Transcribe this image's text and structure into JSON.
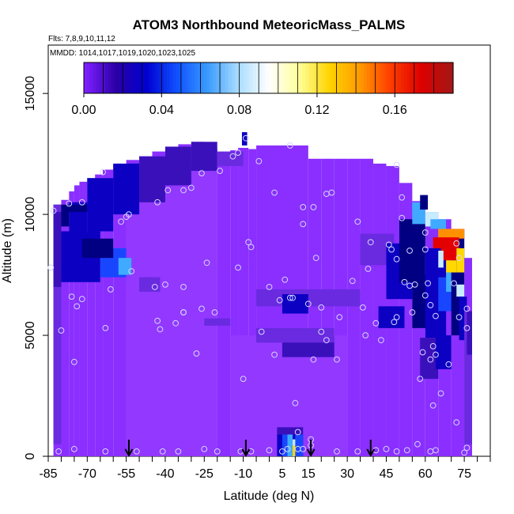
{
  "chart_data": {
    "type": "heatmap",
    "title": "ATOM3 Northbound MeteoricMass_PALMS",
    "flights_label": "Flts: 7,8,9,10,11,12",
    "dates_label": "MMDD: 1014,1017,1019,1020,1023,1025",
    "xlabel": "Latitude (deg N)",
    "ylabel": "Altitude (m)",
    "xlim": [
      -85,
      85
    ],
    "ylim": [
      0,
      17000
    ],
    "x_ticks": [
      "-85",
      "-70",
      "-55",
      "-40",
      "-25",
      "-10",
      "5",
      "15",
      "30",
      "45",
      "60",
      "75"
    ],
    "y_ticks": [
      "0",
      "5000",
      "10000",
      "15000"
    ],
    "colorbar": {
      "min": 0,
      "max": 0.19,
      "tick_labels": [
        "0.00",
        "0.04",
        "0.08",
        "0.12",
        "0.16"
      ],
      "colors": [
        "#7f1fff",
        "#2a00a6",
        "#0000d0",
        "#1050ff",
        "#3a9aff",
        "#a8dcff",
        "#ffffff",
        "#ffff9a",
        "#ffd400",
        "#ff9a00",
        "#ff3c00",
        "#dd0000",
        "#a51616"
      ]
    },
    "field_colors": {
      "background": "#8a2fff",
      "light": "#9238ff",
      "mid": "#6a2ae0",
      "dark": "#3a10bb",
      "deep": "#0c00c2",
      "navy": "#020082",
      "blue": "#1846ff",
      "sky": "#3faaff",
      "pale": "#c8ecff",
      "yellow": "#ffd800",
      "orange": "#ff9000",
      "red": "#e40000",
      "point": "#d6d6ff",
      "arrow": "#000000"
    },
    "arrows_latitude": [
      -54,
      -9,
      16,
      39
    ],
    "observation_points": [
      [
        -83,
        10150
      ],
      [
        -84,
        7800
      ],
      [
        -80,
        5200
      ],
      [
        -76,
        6600
      ],
      [
        -74,
        6200
      ],
      [
        -72,
        6500
      ],
      [
        -77,
        10450
      ],
      [
        -72,
        10500
      ],
      [
        -64,
        11750
      ],
      [
        -57,
        9700
      ],
      [
        -55,
        9900
      ],
      [
        -54,
        10000
      ],
      [
        -43,
        10500
      ],
      [
        -39,
        11000
      ],
      [
        -33,
        11000
      ],
      [
        -30,
        11100
      ],
      [
        -26,
        11700
      ],
      [
        -19,
        11800
      ],
      [
        -14,
        12400
      ],
      [
        -12,
        12550
      ],
      [
        -9,
        13150
      ],
      [
        -61,
        6900
      ],
      [
        -53,
        7650
      ],
      [
        -44,
        7000
      ],
      [
        -40,
        7100
      ],
      [
        -33,
        7000
      ],
      [
        -36,
        5500
      ],
      [
        -42,
        5250
      ],
      [
        -33,
        5950
      ],
      [
        -26,
        6100
      ],
      [
        -24,
        8000
      ],
      [
        -21,
        5950
      ],
      [
        -12,
        7800
      ],
      [
        -8,
        8850
      ],
      [
        -7,
        8650
      ],
      [
        -3,
        5150
      ],
      [
        2,
        10900
      ],
      [
        0,
        7000
      ],
      [
        6,
        7300
      ],
      [
        13,
        10300
      ],
      [
        13,
        9600
      ],
      [
        17,
        10300
      ],
      [
        18,
        8200
      ],
      [
        20,
        6150
      ],
      [
        22,
        10850
      ],
      [
        24,
        10900
      ],
      [
        27,
        5750
      ],
      [
        32,
        7250
      ],
      [
        34,
        9700
      ],
      [
        39,
        8850
      ],
      [
        38,
        7750
      ],
      [
        41,
        5500
      ],
      [
        36,
        6150
      ],
      [
        37,
        5000
      ],
      [
        43,
        4800
      ],
      [
        46,
        8750
      ],
      [
        47,
        8550
      ],
      [
        49,
        12050
      ],
      [
        51,
        10700
      ],
      [
        51,
        9850
      ],
      [
        52,
        7200
      ],
      [
        49,
        5750
      ],
      [
        48,
        5550
      ],
      [
        55,
        5950
      ],
      [
        54,
        8500
      ],
      [
        60,
        8550
      ],
      [
        60,
        6650
      ],
      [
        61,
        7150
      ],
      [
        62,
        6250
      ],
      [
        64,
        5800
      ],
      [
        63,
        4550
      ],
      [
        59,
        4300
      ],
      [
        62,
        4000
      ],
      [
        64,
        4200
      ],
      [
        66,
        2600
      ],
      [
        63,
        2100
      ],
      [
        69,
        3800
      ],
      [
        58,
        3200
      ],
      [
        73,
        8200
      ],
      [
        72,
        8800
      ],
      [
        71,
        7150
      ],
      [
        73,
        5750
      ],
      [
        76,
        5300
      ],
      [
        76,
        6100
      ],
      [
        72,
        1400
      ],
      [
        64,
        250
      ],
      [
        62,
        200
      ],
      [
        57,
        500
      ],
      [
        53,
        250
      ],
      [
        49,
        200
      ],
      [
        45,
        300
      ],
      [
        41,
        250
      ],
      [
        34,
        200
      ],
      [
        26,
        200
      ],
      [
        16,
        450
      ],
      [
        16,
        700
      ],
      [
        13,
        300
      ],
      [
        11,
        1000
      ],
      [
        10,
        2200
      ],
      [
        11,
        300
      ],
      [
        7,
        300
      ],
      [
        5,
        200
      ],
      [
        0,
        250
      ],
      [
        -7,
        200
      ],
      [
        -11,
        200
      ],
      [
        -10,
        3200
      ],
      [
        -20,
        200
      ],
      [
        -25,
        300
      ],
      [
        -35,
        200
      ],
      [
        -41,
        200
      ],
      [
        -51,
        200
      ],
      [
        -63,
        200
      ],
      [
        -75,
        300
      ],
      [
        -81,
        200
      ],
      [
        75,
        150
      ],
      [
        76,
        350
      ],
      [
        -75,
        3900
      ],
      [
        -63,
        5300
      ],
      [
        -33,
        5950
      ],
      [
        4,
        6450
      ],
      [
        8,
        6550
      ],
      [
        9,
        6550
      ],
      [
        15,
        6300
      ],
      [
        20,
        5150
      ],
      [
        22,
        4800
      ],
      [
        17,
        4000
      ],
      [
        49,
        8150
      ],
      [
        54,
        7050
      ],
      [
        56,
        7100
      ],
      [
        60,
        9250
      ],
      [
        -43,
        5600
      ],
      [
        -28,
        4250
      ],
      [
        2,
        4200
      ],
      [
        -4,
        12200
      ],
      [
        8,
        12850
      ],
      [
        26,
        4000
      ]
    ]
  }
}
